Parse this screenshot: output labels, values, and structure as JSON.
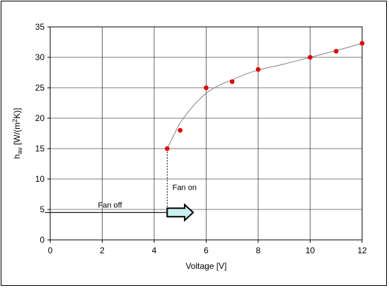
{
  "chart_data": {
    "type": "scatter",
    "title": "",
    "xlabel": "Voltage [V]",
    "ylabel": {
      "base": "h",
      "sub": "av",
      "rest": " [W/(m",
      "sup": "2",
      "end": "K)]"
    },
    "xlim": [
      0,
      12
    ],
    "ylim": [
      0,
      35
    ],
    "xticks": [
      0,
      2,
      4,
      6,
      8,
      10,
      12
    ],
    "yticks": [
      0,
      5,
      10,
      15,
      20,
      25,
      30,
      35
    ],
    "grid": true,
    "legend": "none",
    "series": [
      {
        "marker_color": "#e00000",
        "points": [
          {
            "x": 4.5,
            "y": 15
          },
          {
            "x": 5,
            "y": 18
          },
          {
            "x": 6,
            "y": 25
          },
          {
            "x": 7,
            "y": 26
          },
          {
            "x": 8,
            "y": 28
          },
          {
            "x": 10,
            "y": 30
          },
          {
            "x": 11,
            "y": 31
          },
          {
            "x": 12,
            "y": 32.3
          }
        ]
      }
    ],
    "trend_line": {
      "color": "#808080",
      "points": [
        {
          "x": 4.5,
          "y": 15
        },
        {
          "x": 5,
          "y": 19.2
        },
        {
          "x": 5.5,
          "y": 22
        },
        {
          "x": 6,
          "y": 24.1
        },
        {
          "x": 6.5,
          "y": 25.4
        },
        {
          "x": 7,
          "y": 26.3
        },
        {
          "x": 7.5,
          "y": 27.2
        },
        {
          "x": 8,
          "y": 27.9
        },
        {
          "x": 9,
          "y": 28.9
        },
        {
          "x": 10,
          "y": 30
        },
        {
          "x": 11,
          "y": 31.1
        },
        {
          "x": 12,
          "y": 32.3
        }
      ]
    },
    "fan_off_level": 4.5,
    "fan_on_voltage": 4.5,
    "fan_off_line_start_x": -0.2,
    "arrow_end_x": 5.5,
    "arrow_color": "#c8f0f0",
    "annotations": {
      "fan_off": {
        "text": "Fan off",
        "x": 2.3,
        "y": 5.3
      },
      "fan_on": {
        "text": "Fan on",
        "x": 4.7,
        "y": 8.2
      }
    }
  }
}
